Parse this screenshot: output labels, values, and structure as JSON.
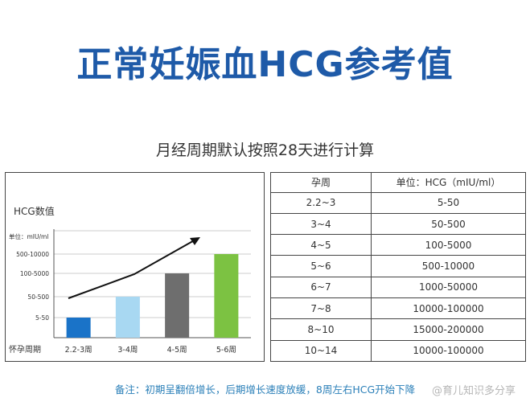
{
  "header": {
    "title": "正常妊娠血HCG参考值",
    "subtitle": "月经周期默认按照28天进行计算"
  },
  "chart_data": {
    "type": "bar",
    "title": "HCG数值",
    "ylabel": "单位：mIU/ml",
    "xlabel": "怀孕周期",
    "categories": [
      "2.2-3周",
      "3-4周",
      "4-5周",
      "5-6周"
    ],
    "y_ticks": [
      "5-50",
      "50-500",
      "100-5000",
      "500-10000"
    ],
    "values": [
      1,
      2,
      3,
      4
    ],
    "colors": [
      "#1a73c8",
      "#a8d8f2",
      "#6e6e6e",
      "#7cc242"
    ],
    "trend_arrow": true,
    "grid": true
  },
  "table": {
    "headers": [
      "孕周",
      "单位：HCG（mIU/ml）"
    ],
    "rows": [
      [
        "2.2~3",
        "5-50"
      ],
      [
        "3~4",
        "50-500"
      ],
      [
        "4~5",
        "100-5000"
      ],
      [
        "5~6",
        "500-10000"
      ],
      [
        "6~7",
        "1000-50000"
      ],
      [
        "7~8",
        "10000-100000"
      ],
      [
        "8~10",
        "15000-200000"
      ],
      [
        "10~14",
        "10000-100000"
      ]
    ]
  },
  "footer": {
    "note": "备注：初期呈翻倍增长，后期增长速度放缓，8周左右HCG开始下降",
    "watermark": "@育儿知识多分享"
  }
}
